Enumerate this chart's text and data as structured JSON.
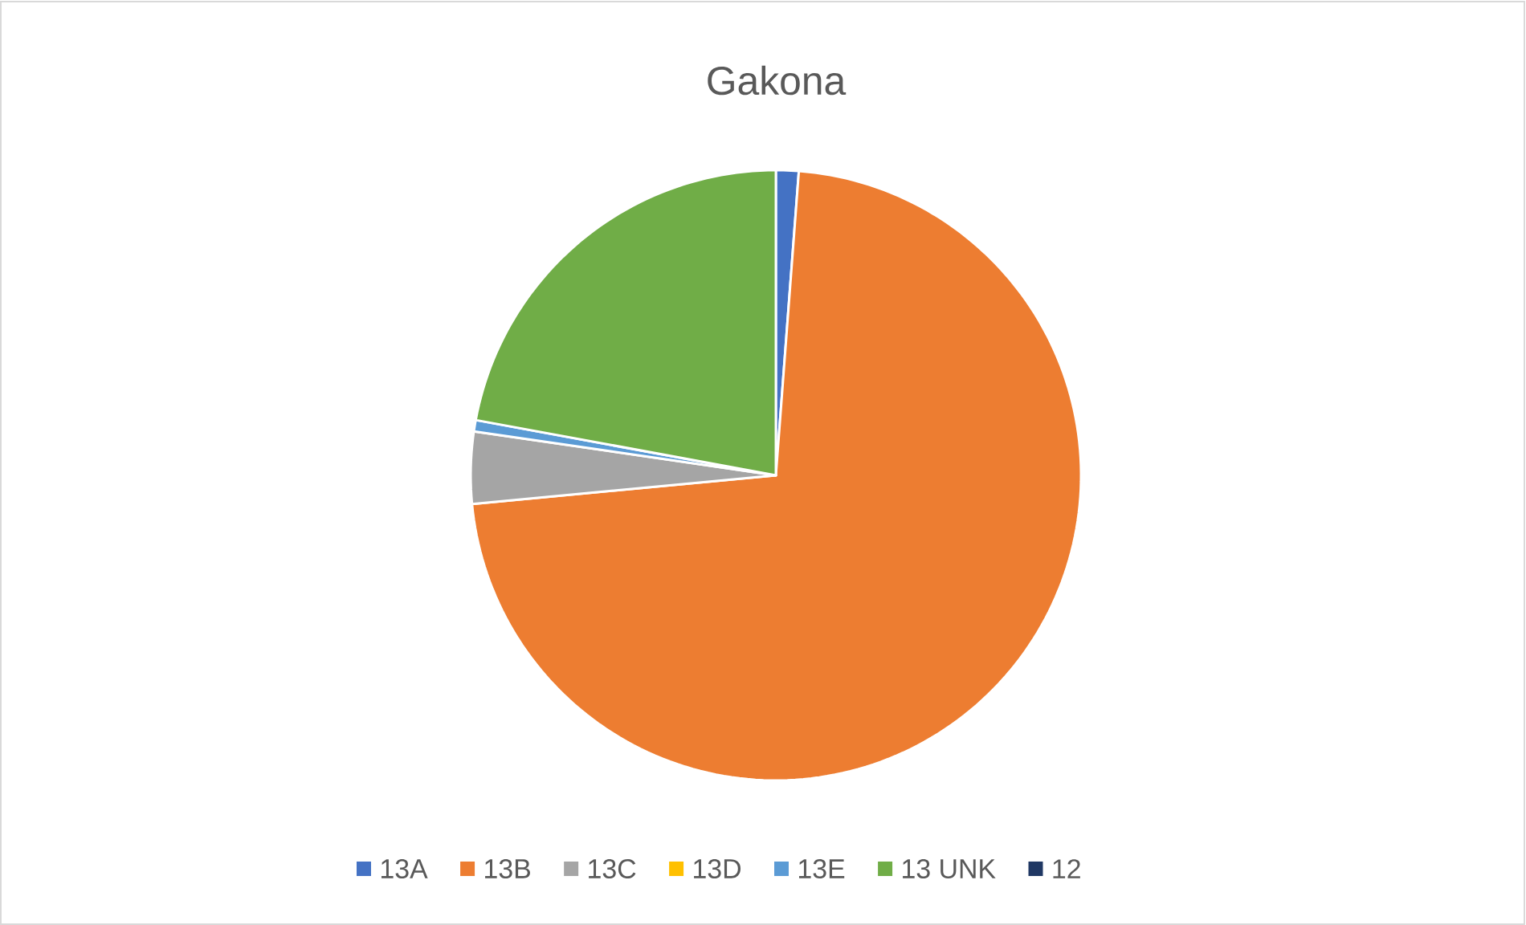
{
  "chart_data": {
    "type": "pie",
    "title": "Gakona",
    "categories": [
      "13A",
      "13B",
      "13C",
      "13D",
      "13E",
      "13 UNK",
      "12"
    ],
    "values": [
      1.2,
      72.3,
      3.8,
      0,
      0.6,
      22.1,
      0
    ],
    "colors": [
      "#4472c4",
      "#ed7d31",
      "#a5a5a5",
      "#ffc000",
      "#5b9bd5",
      "#70ad47",
      "#203864"
    ],
    "legend": "bottom"
  }
}
